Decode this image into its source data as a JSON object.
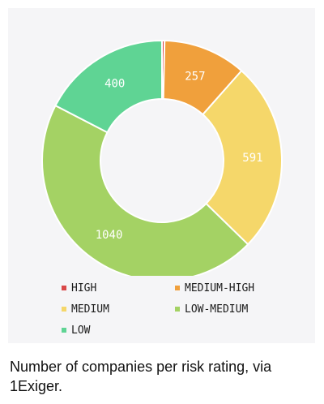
{
  "chart_data": {
    "type": "donut",
    "series": [
      {
        "name": "HIGH",
        "value": 8,
        "color": "#d94848"
      },
      {
        "name": "MEDIUM-HIGH",
        "value": 257,
        "color": "#f0a03c"
      },
      {
        "name": "MEDIUM",
        "value": 591,
        "color": "#f5d76a"
      },
      {
        "name": "LOW-MEDIUM",
        "value": 1040,
        "color": "#a4d264"
      },
      {
        "name": "LOW",
        "value": 400,
        "color": "#5fd494"
      }
    ],
    "data_labels": {
      "MEDIUM-HIGH": "257",
      "MEDIUM": "591",
      "LOW-MEDIUM": "1040",
      "LOW": "400"
    },
    "legend_placement": "bottom"
  },
  "caption": "Number of companies per risk rating, via 1Exiger."
}
